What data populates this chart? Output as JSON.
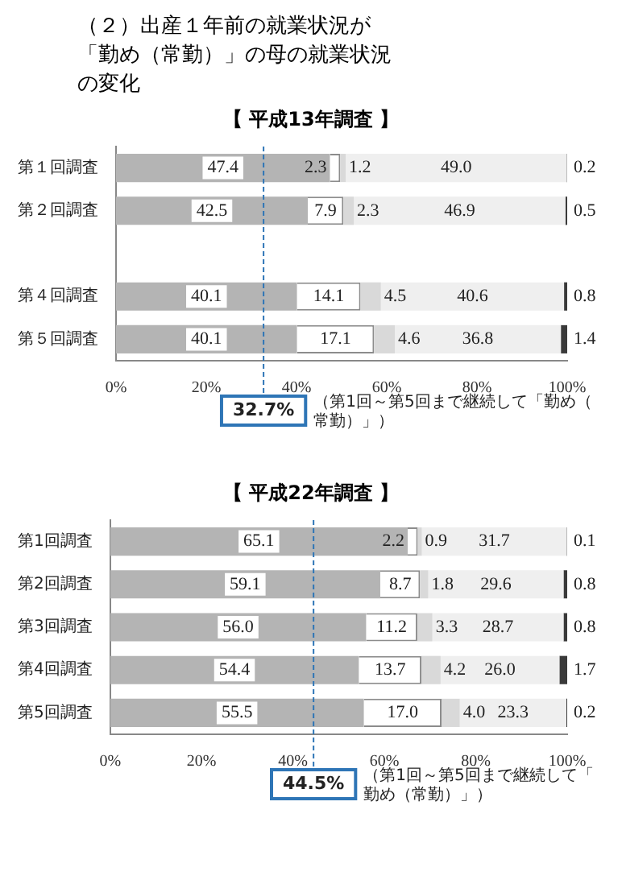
{
  "chart_data": [
    {
      "type": "bar",
      "orientation": "horizontal",
      "stacked": true,
      "title": "（２）出産１年前の就業状況が「勤め（常勤）」の母の就業状況の変化",
      "subtitle": "【 平成13年調査 】",
      "categories": [
        "第１回調査",
        "第２回調査",
        null,
        "第４回調査",
        "第５回調査"
      ],
      "series": [
        {
          "color": "#b4b4b4",
          "values": [
            47.4,
            42.5,
            null,
            40.1,
            40.1
          ],
          "value_labels": [
            "47.4",
            "42.5",
            null,
            "40.1",
            "40.1"
          ]
        },
        {
          "color": "#ffffff",
          "values": [
            2.3,
            7.9,
            null,
            14.1,
            17.1
          ],
          "value_labels": [
            "2.3",
            "7.9",
            null,
            "14.1",
            "17.1"
          ]
        },
        {
          "color": "#d9d9d9",
          "values": [
            1.2,
            2.3,
            null,
            4.5,
            4.6
          ],
          "value_labels": [
            "1.2",
            "2.3",
            null,
            "4.5",
            "4.6"
          ]
        },
        {
          "color": "#efefef",
          "values": [
            49.0,
            46.9,
            null,
            40.6,
            36.8
          ],
          "value_labels": [
            "49.0",
            "46.9",
            null,
            "40.6",
            "36.8"
          ]
        },
        {
          "color": "#3a3a3a",
          "values": [
            0.2,
            0.5,
            null,
            0.8,
            1.4
          ],
          "value_labels": [
            "0.2",
            "0.5",
            null,
            "0.8",
            "1.4"
          ]
        }
      ],
      "xlim": [
        0,
        100
      ],
      "xticks": [
        {
          "value": 0,
          "label": "0%"
        },
        {
          "value": 20,
          "label": "20%"
        },
        {
          "value": 40,
          "label": "40%"
        },
        {
          "value": 60,
          "label": "60%"
        },
        {
          "value": 80,
          "label": "80%"
        },
        {
          "value": 100,
          "label": "100%"
        }
      ],
      "grid": false,
      "legend": false,
      "ref_lines": [
        {
          "axis": "x",
          "value": 32.7,
          "label": "32.7%",
          "color": "#2e75b6",
          "line_style": "dashed"
        }
      ],
      "annotations": [
        "（第1回～第5回まで継続して「勤め（常勤）」）"
      ]
    },
    {
      "type": "bar",
      "orientation": "horizontal",
      "stacked": true,
      "subtitle": "【 平成22年調査 】",
      "categories": [
        "第1回調査",
        "第2回調査",
        "第3回調査",
        "第4回調査",
        "第5回調査"
      ],
      "series": [
        {
          "color": "#b4b4b4",
          "values": [
            65.1,
            59.1,
            56.0,
            54.4,
            55.5
          ],
          "value_labels": [
            "65.1",
            "59.1",
            "56.0",
            "54.4",
            "55.5"
          ]
        },
        {
          "color": "#ffffff",
          "values": [
            2.2,
            8.7,
            11.2,
            13.7,
            17.0
          ],
          "value_labels": [
            "2.2",
            "8.7",
            "11.2",
            "13.7",
            "17.0"
          ]
        },
        {
          "color": "#d9d9d9",
          "values": [
            0.9,
            1.8,
            3.3,
            4.2,
            4.0
          ],
          "value_labels": [
            "0.9",
            "1.8",
            "3.3",
            "4.2",
            "4.0"
          ]
        },
        {
          "color": "#efefef",
          "values": [
            31.7,
            29.6,
            28.7,
            26.0,
            23.3
          ],
          "value_labels": [
            "31.7",
            "29.6",
            "28.7",
            "26.0",
            "23.3"
          ]
        },
        {
          "color": "#3a3a3a",
          "values": [
            0.1,
            0.8,
            0.8,
            1.7,
            0.2
          ],
          "value_labels": [
            "0.1",
            "0.8",
            "0.8",
            "1.7",
            "0.2"
          ]
        }
      ],
      "xlim": [
        0,
        100
      ],
      "xticks": [
        {
          "value": 0,
          "label": "0%"
        },
        {
          "value": 20,
          "label": "20%"
        },
        {
          "value": 40,
          "label": "40%"
        },
        {
          "value": 60,
          "label": "60%"
        },
        {
          "value": 80,
          "label": "80%"
        },
        {
          "value": 100,
          "label": "100%"
        }
      ],
      "grid": false,
      "legend": false,
      "ref_lines": [
        {
          "axis": "x",
          "value": 44.5,
          "label": "44.5%",
          "color": "#2e75b6",
          "line_style": "dashed"
        }
      ],
      "annotations": [
        "（第1回～第5回まで継続して「勤め（常勤）」）"
      ]
    }
  ]
}
